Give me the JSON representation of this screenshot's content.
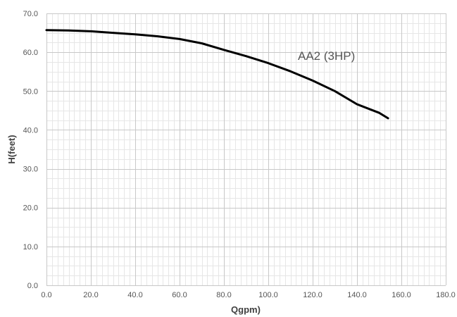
{
  "chart_data": {
    "type": "line",
    "title": "",
    "xlabel": "Qgpm)",
    "ylabel": "H(feet)",
    "xlim": [
      0,
      180
    ],
    "ylim": [
      0,
      70
    ],
    "x_ticks": [
      "0.0",
      "20.0",
      "40.0",
      "60.0",
      "80.0",
      "100.0",
      "120.0",
      "140.0",
      "160.0",
      "180.0"
    ],
    "y_ticks": [
      "0.0",
      "10.0",
      "20.0",
      "30.0",
      "40.0",
      "50.0",
      "60.0",
      "70.0"
    ],
    "grid": true,
    "annotation": "AA2 (3HP)",
    "series": [
      {
        "name": "AA2 (3HP)",
        "color": "#000000",
        "x": [
          0,
          10,
          20,
          30,
          40,
          50,
          60,
          70,
          80,
          90,
          100,
          110,
          120,
          130,
          140,
          150,
          154
        ],
        "y": [
          65.7,
          65.6,
          65.4,
          65.0,
          64.6,
          64.1,
          63.4,
          62.3,
          60.6,
          59.0,
          57.2,
          55.1,
          52.7,
          50.0,
          46.6,
          44.4,
          43.0
        ]
      }
    ]
  }
}
